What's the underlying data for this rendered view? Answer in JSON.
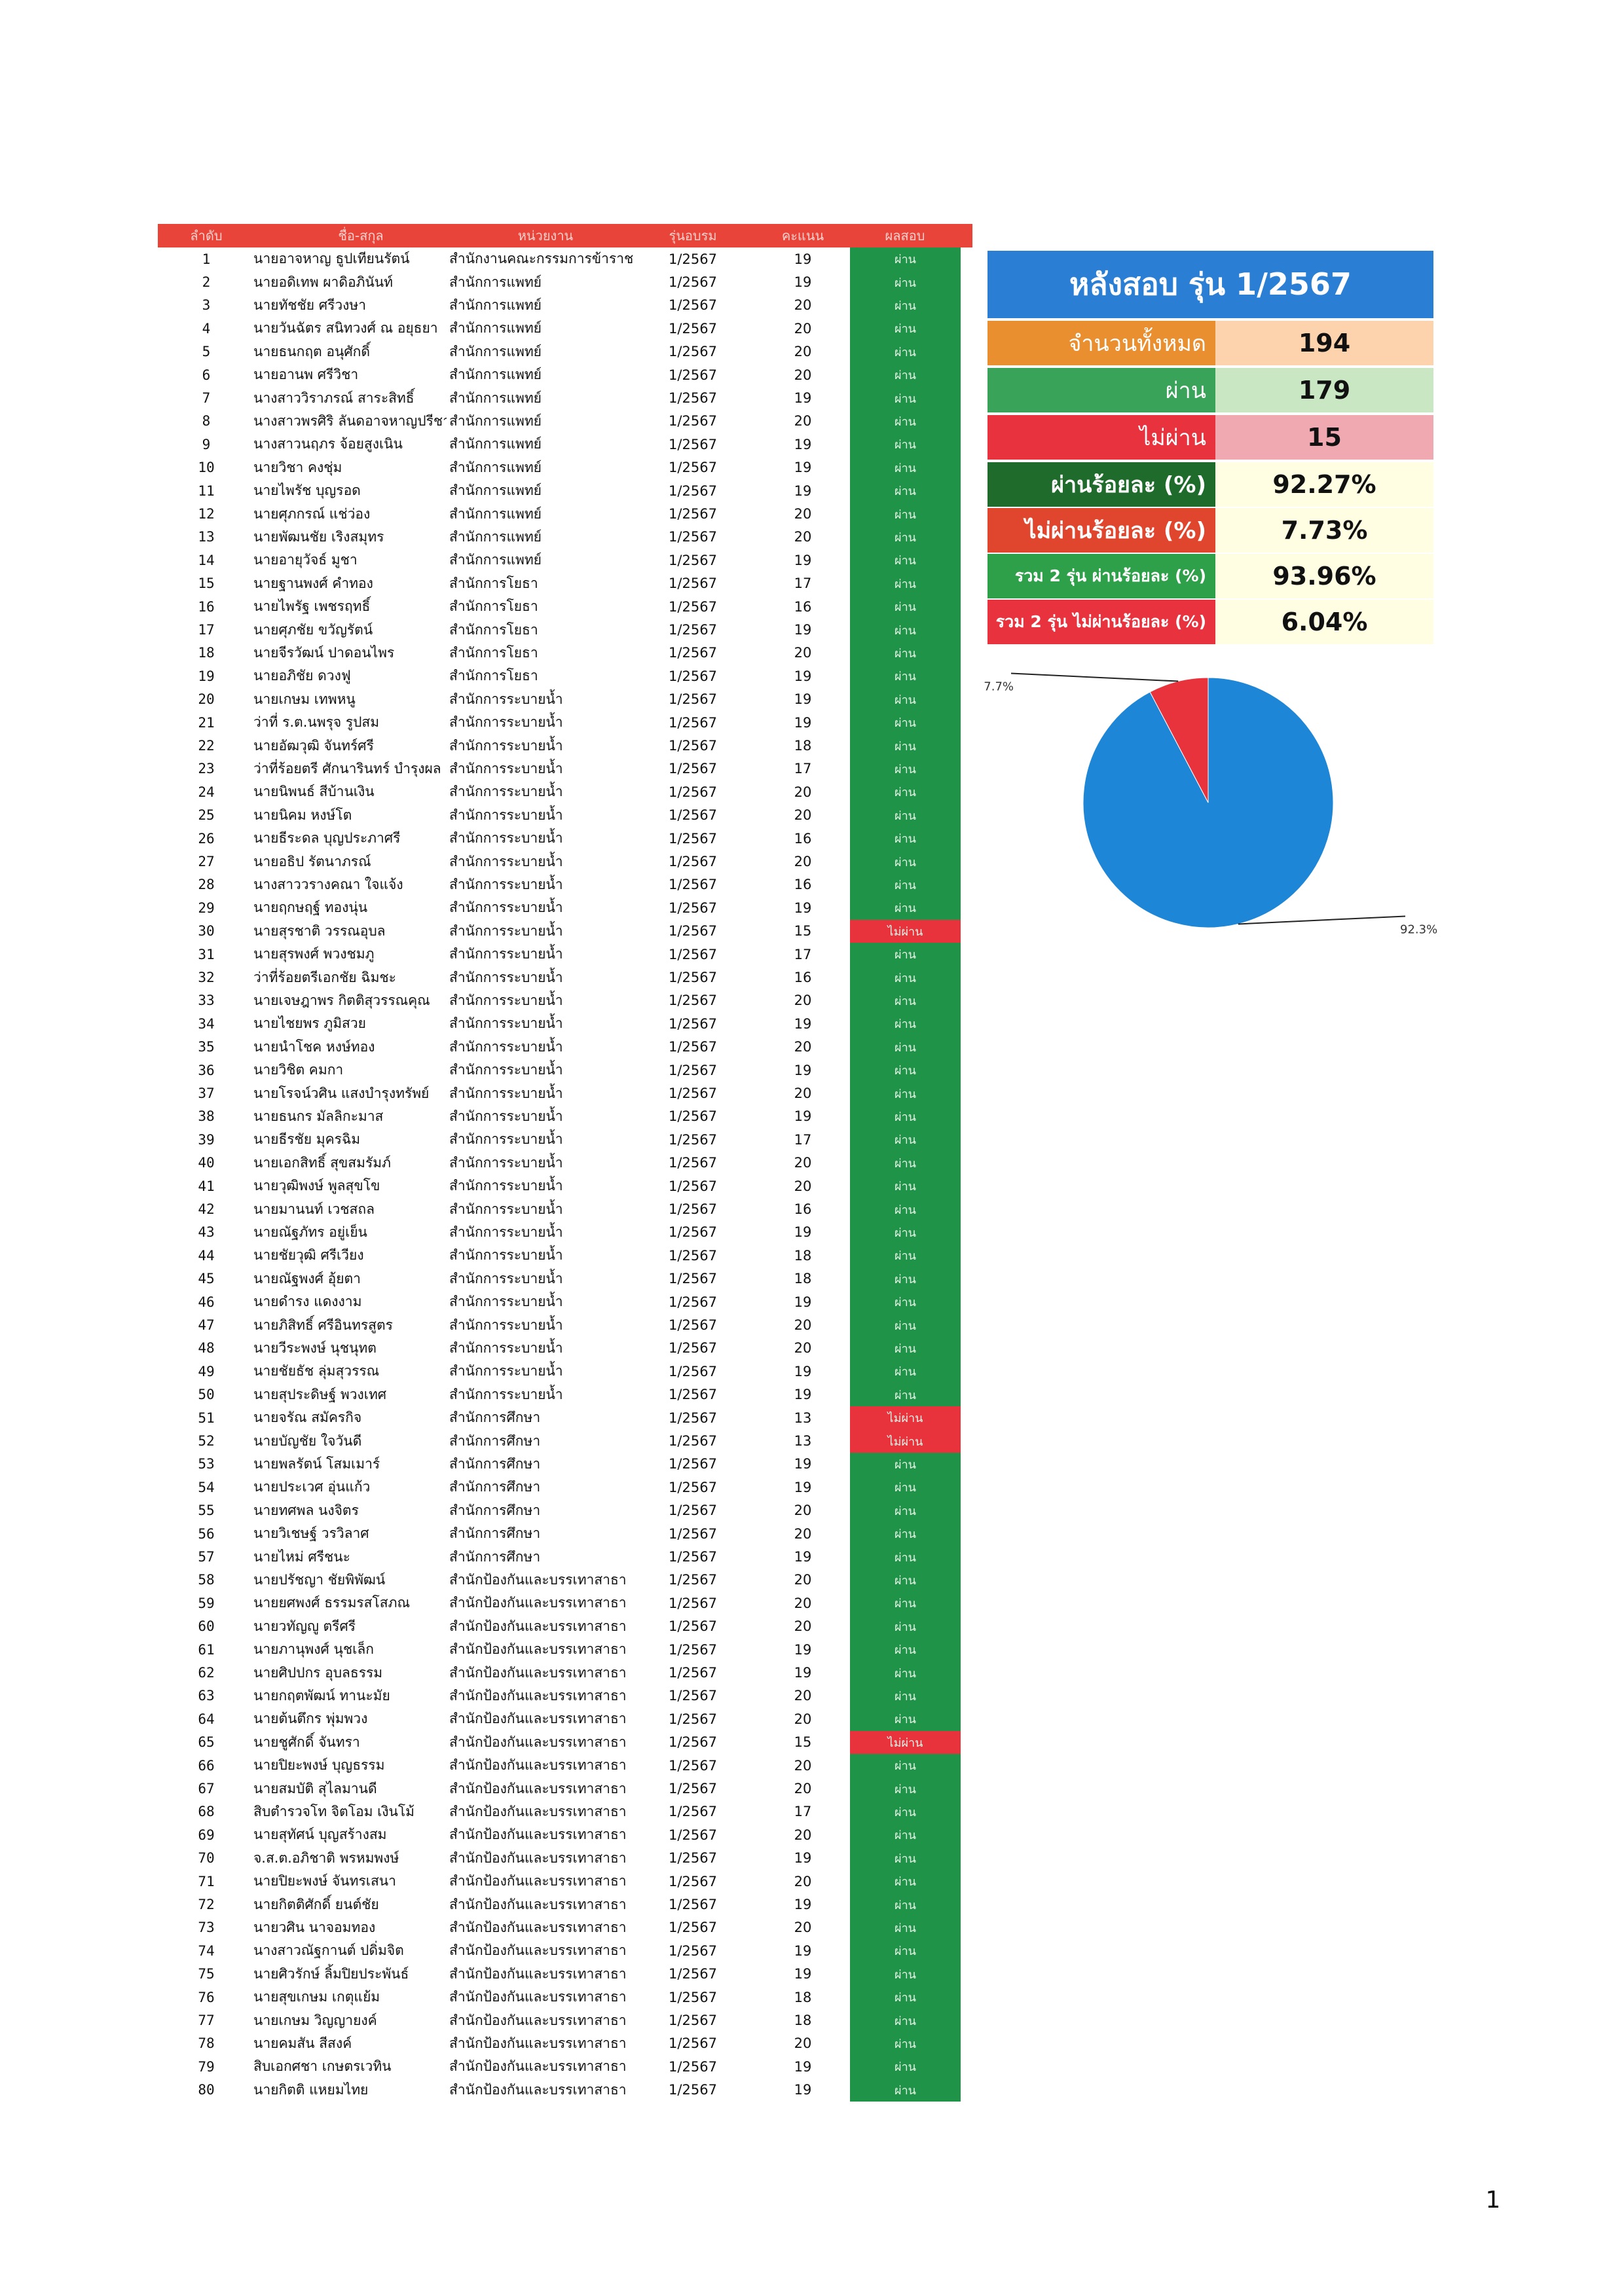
{
  "table": {
    "columns": [
      "ลำดับ",
      "ชื่อ-สกุล",
      "หน่วยงาน",
      "รุ่นอบรม",
      "คะแนน",
      "ผลสอบ"
    ],
    "rows": [
      [
        "1",
        "นายอาจหาญ ธูปเทียนรัตน์",
        "สำนักงานคณะกรรมการข้าราช",
        "1/2567",
        "19",
        "ผ่าน"
      ],
      [
        "2",
        "นายอดิเทพ ผาดิอภินันท์",
        "สำนักการแพทย์",
        "1/2567",
        "19",
        "ผ่าน"
      ],
      [
        "3",
        "นายทัชชัย ศรีวงษา",
        "สำนักการแพทย์",
        "1/2567",
        "20",
        "ผ่าน"
      ],
      [
        "4",
        "นายวันฉัตร สนิทวงศ์ ณ อยุธยา",
        "สำนักการแพทย์",
        "1/2567",
        "20",
        "ผ่าน"
      ],
      [
        "5",
        "นายธนกฤต อนุศักดิ์",
        "สำนักการแพทย์",
        "1/2567",
        "20",
        "ผ่าน"
      ],
      [
        "6",
        "นายอานพ ศรีวิชา",
        "สำนักการแพทย์",
        "1/2567",
        "20",
        "ผ่าน"
      ],
      [
        "7",
        "นางสาววิราภรณ์ สาระสิทธิ์",
        "สำนักการแพทย์",
        "1/2567",
        "19",
        "ผ่าน"
      ],
      [
        "8",
        "นางสาวพรศิริ ลันดอาจหาญปรีชา",
        "สำนักการแพทย์",
        "1/2567",
        "20",
        "ผ่าน"
      ],
      [
        "9",
        "นางสาวนฤภร จ้อยสูงเนิน",
        "สำนักการแพทย์",
        "1/2567",
        "19",
        "ผ่าน"
      ],
      [
        "10",
        "นายวิชา คงชุ่ม",
        "สำนักการแพทย์",
        "1/2567",
        "19",
        "ผ่าน"
      ],
      [
        "11",
        "นายไพรัช บุญรอด",
        "สำนักการแพทย์",
        "1/2567",
        "19",
        "ผ่าน"
      ],
      [
        "12",
        "นายศุภกรณ์ แช่ว่อง",
        "สำนักการแพทย์",
        "1/2567",
        "20",
        "ผ่าน"
      ],
      [
        "13",
        "นายพัฒนชัย เริงสมุทร",
        "สำนักการแพทย์",
        "1/2567",
        "20",
        "ผ่าน"
      ],
      [
        "14",
        "นายอายุวัจธ์ มูชา",
        "สำนักการแพทย์",
        "1/2567",
        "19",
        "ผ่าน"
      ],
      [
        "15",
        "นายฐานพงศ์ คำทอง",
        "สำนักการโยธา",
        "1/2567",
        "17",
        "ผ่าน"
      ],
      [
        "16",
        "นายไพรัฐ เพชรฤทธิ์",
        "สำนักการโยธา",
        "1/2567",
        "16",
        "ผ่าน"
      ],
      [
        "17",
        "นายศุภชัย ขวัญรัตน์",
        "สำนักการโยธา",
        "1/2567",
        "19",
        "ผ่าน"
      ],
      [
        "18",
        "นายจีรวัฒน์ ปาดอนไพร",
        "สำนักการโยธา",
        "1/2567",
        "20",
        "ผ่าน"
      ],
      [
        "19",
        "นายอภิชัย ดวงฟู",
        "สำนักการโยธา",
        "1/2567",
        "19",
        "ผ่าน"
      ],
      [
        "20",
        "นายเกษม เทพหนู",
        "สำนักการระบายน้ำ",
        "1/2567",
        "19",
        "ผ่าน"
      ],
      [
        "21",
        "ว่าที่ ร.ต.นพรุจ รูปสม",
        "สำนักการระบายน้ำ",
        "1/2567",
        "19",
        "ผ่าน"
      ],
      [
        "22",
        "นายอัฒวุฒิ จันทร์ศรี",
        "สำนักการระบายน้ำ",
        "1/2567",
        "18",
        "ผ่าน"
      ],
      [
        "23",
        "ว่าที่ร้อยตรี ศักนารินทร์ บำรุงผล",
        "สำนักการระบายน้ำ",
        "1/2567",
        "17",
        "ผ่าน"
      ],
      [
        "24",
        "นายนิพนธ์ สีบ้านเงิน",
        "สำนักการระบายน้ำ",
        "1/2567",
        "20",
        "ผ่าน"
      ],
      [
        "25",
        "นายนิคม หงษ์โต",
        "สำนักการระบายน้ำ",
        "1/2567",
        "20",
        "ผ่าน"
      ],
      [
        "26",
        "นายธีระดล บุญประภาศรี",
        "สำนักการระบายน้ำ",
        "1/2567",
        "16",
        "ผ่าน"
      ],
      [
        "27",
        "นายอธิป รัตนาภรณ์",
        "สำนักการระบายน้ำ",
        "1/2567",
        "20",
        "ผ่าน"
      ],
      [
        "28",
        "นางสาววรางคณา ใจแจ้ง",
        "สำนักการระบายน้ำ",
        "1/2567",
        "16",
        "ผ่าน"
      ],
      [
        "29",
        "นายฤกษฤฐ์ ทองนุ่น",
        "สำนักการระบายน้ำ",
        "1/2567",
        "19",
        "ผ่าน"
      ],
      [
        "30",
        "นายสุรชาติ วรรณอุบล",
        "สำนักการระบายน้ำ",
        "1/2567",
        "15",
        "ไม่ผ่าน"
      ],
      [
        "31",
        "นายสุรพงศ์ พวงชมภู",
        "สำนักการระบายน้ำ",
        "1/2567",
        "17",
        "ผ่าน"
      ],
      [
        "32",
        "ว่าที่ร้อยตรีเอกชัย ฉิมชะ",
        "สำนักการระบายน้ำ",
        "1/2567",
        "16",
        "ผ่าน"
      ],
      [
        "33",
        "นายเจษฎาพร กิตติสุวรรณคุณ",
        "สำนักการระบายน้ำ",
        "1/2567",
        "20",
        "ผ่าน"
      ],
      [
        "34",
        "นายไชยพร ภูมิสวย",
        "สำนักการระบายน้ำ",
        "1/2567",
        "19",
        "ผ่าน"
      ],
      [
        "35",
        "นายนำโชค หงษ์ทอง",
        "สำนักการระบายน้ำ",
        "1/2567",
        "20",
        "ผ่าน"
      ],
      [
        "36",
        "นายวิชิต คมกา",
        "สำนักการระบายน้ำ",
        "1/2567",
        "19",
        "ผ่าน"
      ],
      [
        "37",
        "นายโรจน์วศิน แสงบำรุงทรัพย์",
        "สำนักการระบายน้ำ",
        "1/2567",
        "20",
        "ผ่าน"
      ],
      [
        "38",
        "นายธนกร มัลลิกะมาส",
        "สำนักการระบายน้ำ",
        "1/2567",
        "19",
        "ผ่าน"
      ],
      [
        "39",
        "นายธีรชัย มุครฉิม",
        "สำนักการระบายน้ำ",
        "1/2567",
        "17",
        "ผ่าน"
      ],
      [
        "40",
        "นายเอกสิทธิ์ สุขสมรัมภ์",
        "สำนักการระบายน้ำ",
        "1/2567",
        "20",
        "ผ่าน"
      ],
      [
        "41",
        "นายวุฒิพงษ์ พูลสุขโข",
        "สำนักการระบายน้ำ",
        "1/2567",
        "20",
        "ผ่าน"
      ],
      [
        "42",
        "นายมานนท์ เวชสถล",
        "สำนักการระบายน้ำ",
        "1/2567",
        "16",
        "ผ่าน"
      ],
      [
        "43",
        "นายณัฐภัทร อยู่เย็น",
        "สำนักการระบายน้ำ",
        "1/2567",
        "19",
        "ผ่าน"
      ],
      [
        "44",
        "นายชัยวุฒิ ศรีเวียง",
        "สำนักการระบายน้ำ",
        "1/2567",
        "18",
        "ผ่าน"
      ],
      [
        "45",
        "นายณัฐพงศ์ อุ้ยตา",
        "สำนักการระบายน้ำ",
        "1/2567",
        "18",
        "ผ่าน"
      ],
      [
        "46",
        "นายดำรง แดงงาม",
        "สำนักการระบายน้ำ",
        "1/2567",
        "19",
        "ผ่าน"
      ],
      [
        "47",
        "นายภิสิทธิ์ ศรีอินทรสูตร",
        "สำนักการระบายน้ำ",
        "1/2567",
        "20",
        "ผ่าน"
      ],
      [
        "48",
        "นายวีระพงษ์ นุชนุทต",
        "สำนักการระบายน้ำ",
        "1/2567",
        "20",
        "ผ่าน"
      ],
      [
        "49",
        "นายชัยธัช ลุ่มสุวรรณ",
        "สำนักการระบายน้ำ",
        "1/2567",
        "19",
        "ผ่าน"
      ],
      [
        "50",
        "นายสุประดิษฐ์ พวงเทศ",
        "สำนักการระบายน้ำ",
        "1/2567",
        "19",
        "ผ่าน"
      ],
      [
        "51",
        "นายจรัณ สมัครกิจ",
        "สำนักการศึกษา",
        "1/2567",
        "13",
        "ไม่ผ่าน"
      ],
      [
        "52",
        "นายบัญชัย ใจวันดี",
        "สำนักการศึกษา",
        "1/2567",
        "13",
        "ไม่ผ่าน"
      ],
      [
        "53",
        "นายพลรัตน์ โสมเมาร์",
        "สำนักการศึกษา",
        "1/2567",
        "19",
        "ผ่าน"
      ],
      [
        "54",
        "นายประเวศ อุ่นแก้ว",
        "สำนักการศึกษา",
        "1/2567",
        "19",
        "ผ่าน"
      ],
      [
        "55",
        "นายทศพล นงจิตร",
        "สำนักการศึกษา",
        "1/2567",
        "20",
        "ผ่าน"
      ],
      [
        "56",
        "นายวิเชษฐ์ วรวิลาศ",
        "สำนักการศึกษา",
        "1/2567",
        "20",
        "ผ่าน"
      ],
      [
        "57",
        "นายไหม่ ศรีชนะ",
        "สำนักการศึกษา",
        "1/2567",
        "19",
        "ผ่าน"
      ],
      [
        "58",
        "นายปรัชญา ชัยพิพัฒน์",
        "สำนักป้องกันและบรรเทาสาธา",
        "1/2567",
        "20",
        "ผ่าน"
      ],
      [
        "59",
        "นายยศพงศ์ ธรรมรสโสภณ",
        "สำนักป้องกันและบรรเทาสาธา",
        "1/2567",
        "20",
        "ผ่าน"
      ],
      [
        "60",
        "นายวทัญญู ตรีศรี",
        "สำนักป้องกันและบรรเทาสาธา",
        "1/2567",
        "20",
        "ผ่าน"
      ],
      [
        "61",
        "นายภานุพงศ์ นุชเล็ก",
        "สำนักป้องกันและบรรเทาสาธา",
        "1/2567",
        "19",
        "ผ่าน"
      ],
      [
        "62",
        "นายศิปปกร อุบลธรรม",
        "สำนักป้องกันและบรรเทาสาธา",
        "1/2567",
        "19",
        "ผ่าน"
      ],
      [
        "63",
        "นายกฤตพัฒน์ ทานะมัย",
        "สำนักป้องกันและบรรเทาสาธา",
        "1/2567",
        "20",
        "ผ่าน"
      ],
      [
        "64",
        "นายต้นตึกร พุ่มพวง",
        "สำนักป้องกันและบรรเทาสาธา",
        "1/2567",
        "20",
        "ผ่าน"
      ],
      [
        "65",
        "นายชูศักดิ์ จันทรา",
        "สำนักป้องกันและบรรเทาสาธา",
        "1/2567",
        "15",
        "ไม่ผ่าน"
      ],
      [
        "66",
        "นายปิยะพงษ์ บุญธรรม",
        "สำนักป้องกันและบรรเทาสาธา",
        "1/2567",
        "20",
        "ผ่าน"
      ],
      [
        "67",
        "นายสมบัติ สุไลมานดี",
        "สำนักป้องกันและบรรเทาสาธา",
        "1/2567",
        "20",
        "ผ่าน"
      ],
      [
        "68",
        "สิบตำรวจโท จิตโอม เงินโม้",
        "สำนักป้องกันและบรรเทาสาธา",
        "1/2567",
        "17",
        "ผ่าน"
      ],
      [
        "69",
        "นายสุทัศน์ บุญสร้างสม",
        "สำนักป้องกันและบรรเทาสาธา",
        "1/2567",
        "20",
        "ผ่าน"
      ],
      [
        "70",
        "จ.ส.ต.อภิชาติ พรหมพงษ์",
        "สำนักป้องกันและบรรเทาสาธา",
        "1/2567",
        "19",
        "ผ่าน"
      ],
      [
        "71",
        "นายปิยะพงษ์ จันทรเสนา",
        "สำนักป้องกันและบรรเทาสาธา",
        "1/2567",
        "20",
        "ผ่าน"
      ],
      [
        "72",
        "นายกิตติศักดิ์ ยนต์ชัย",
        "สำนักป้องกันและบรรเทาสาธา",
        "1/2567",
        "19",
        "ผ่าน"
      ],
      [
        "73",
        "นายวศิน นาจอมทอง",
        "สำนักป้องกันและบรรเทาสาธา",
        "1/2567",
        "20",
        "ผ่าน"
      ],
      [
        "74",
        "นางสาวณัฐกานต์ ปดิ่มจิต",
        "สำนักป้องกันและบรรเทาสาธา",
        "1/2567",
        "19",
        "ผ่าน"
      ],
      [
        "75",
        "นายศิวรักษ์ ลิ้มปิยประพันธ์",
        "สำนักป้องกันและบรรเทาสาธา",
        "1/2567",
        "19",
        "ผ่าน"
      ],
      [
        "76",
        "นายสุขเกษม เกตุแย้ม",
        "สำนักป้องกันและบรรเทาสาธา",
        "1/2567",
        "18",
        "ผ่าน"
      ],
      [
        "77",
        "นายเกษม วิญญายงค์",
        "สำนักป้องกันและบรรเทาสาธา",
        "1/2567",
        "18",
        "ผ่าน"
      ],
      [
        "78",
        "นายคมสัน สีสงค์",
        "สำนักป้องกันและบรรเทาสาธา",
        "1/2567",
        "20",
        "ผ่าน"
      ],
      [
        "79",
        "สิบเอกศชา เกษตรเวทิน",
        "สำนักป้องกันและบรรเทาสาธา",
        "1/2567",
        "19",
        "ผ่าน"
      ],
      [
        "80",
        "นายกิตติ แหยมไทย",
        "สำนักป้องกันและบรรเทาสาธา",
        "1/2567",
        "19",
        "ผ่าน"
      ]
    ]
  },
  "summary": {
    "title": "หลังสอบ รุ่น 1/2567",
    "rows": [
      {
        "label": "จำนวนทั้งหมด",
        "value": "194"
      },
      {
        "label": "ผ่าน",
        "value": "179"
      },
      {
        "label": "ไม่ผ่าน",
        "value": "15"
      },
      {
        "label": "ผ่านร้อยละ (%)",
        "value": "92.27%"
      },
      {
        "label": "ไม่ผ่านร้อยละ (%)",
        "value": "7.73%"
      },
      {
        "label": "รวม 2 รุ่น ผ่านร้อยละ (%)",
        "value": "93.96%"
      },
      {
        "label": "รวม 2 รุ่น ไม่ผ่านร้อยละ (%)",
        "value": "6.04%"
      }
    ]
  },
  "chart_data": {
    "type": "pie",
    "values": [
      92.3,
      7.7
    ],
    "value_labels": [
      "92.3%",
      "7.7%"
    ],
    "colors": [
      "#1e86d6",
      "#e8323c"
    ]
  },
  "page_number": "1"
}
